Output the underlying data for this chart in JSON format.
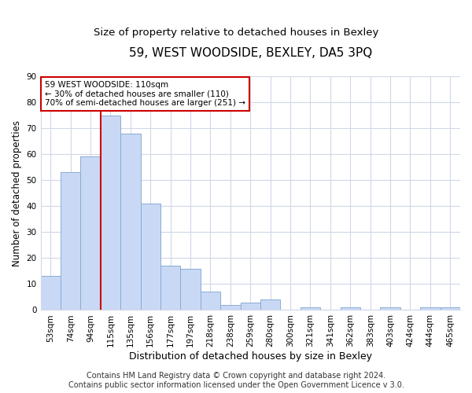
{
  "title": "59, WEST WOODSIDE, BEXLEY, DA5 3PQ",
  "subtitle": "Size of property relative to detached houses in Bexley",
  "xlabel": "Distribution of detached houses by size in Bexley",
  "ylabel": "Number of detached properties",
  "bar_labels": [
    "53sqm",
    "74sqm",
    "94sqm",
    "115sqm",
    "135sqm",
    "156sqm",
    "177sqm",
    "197sqm",
    "218sqm",
    "238sqm",
    "259sqm",
    "280sqm",
    "300sqm",
    "321sqm",
    "341sqm",
    "362sqm",
    "383sqm",
    "403sqm",
    "424sqm",
    "444sqm",
    "465sqm"
  ],
  "bar_values": [
    13,
    53,
    59,
    75,
    68,
    41,
    17,
    16,
    7,
    2,
    3,
    4,
    0,
    1,
    0,
    1,
    0,
    1,
    0,
    1,
    1
  ],
  "bar_color": "#c9d9f5",
  "bar_edgecolor": "#8aaad4",
  "vline_index": 3,
  "vline_color": "#cc0000",
  "ylim": [
    0,
    90
  ],
  "yticks": [
    0,
    10,
    20,
    30,
    40,
    50,
    60,
    70,
    80,
    90
  ],
  "annotation_text": "59 WEST WOODSIDE: 110sqm\n← 30% of detached houses are smaller (110)\n70% of semi-detached houses are larger (251) →",
  "footer": "Contains HM Land Registry data © Crown copyright and database right 2024.\nContains public sector information licensed under the Open Government Licence v 3.0.",
  "title_fontsize": 11,
  "subtitle_fontsize": 9.5,
  "xlabel_fontsize": 9,
  "ylabel_fontsize": 8.5,
  "tick_fontsize": 7.5,
  "annotation_fontsize": 7.5,
  "footer_fontsize": 7,
  "background_color": "#ffffff",
  "grid_color": "#d0d8e8"
}
